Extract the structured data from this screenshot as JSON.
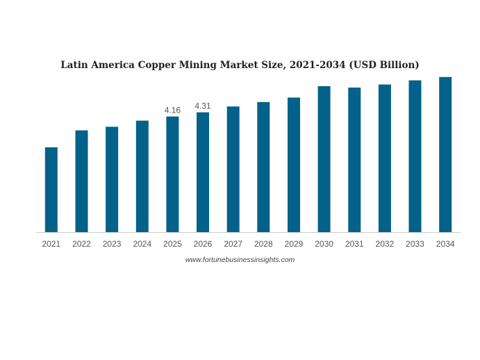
{
  "chart_data": {
    "type": "bar",
    "title": "Latin America Copper Mining Market Size, 2021-2034 (USD Billion)",
    "xlabel": "",
    "ylabel": "",
    "categories": [
      "2021",
      "2022",
      "2023",
      "2024",
      "2025",
      "2026",
      "2027",
      "2028",
      "2029",
      "2030",
      "2031",
      "2032",
      "2033",
      "2034"
    ],
    "values": [
      3.05,
      3.66,
      3.79,
      4.01,
      4.16,
      4.31,
      4.52,
      4.68,
      4.84,
      5.25,
      5.2,
      5.31,
      5.46,
      5.58
    ],
    "data_labels": [
      {
        "category": "2025",
        "text": "4.16"
      },
      {
        "category": "2026",
        "text": "4.31"
      }
    ],
    "ylim": [
      0,
      6
    ],
    "grid": false,
    "legend": "none",
    "bar_color": "#03618a",
    "axis_color": "#cccccc",
    "label_color": "#555555"
  },
  "footer": {
    "source": "www.fortunebusinessinsights.com"
  }
}
